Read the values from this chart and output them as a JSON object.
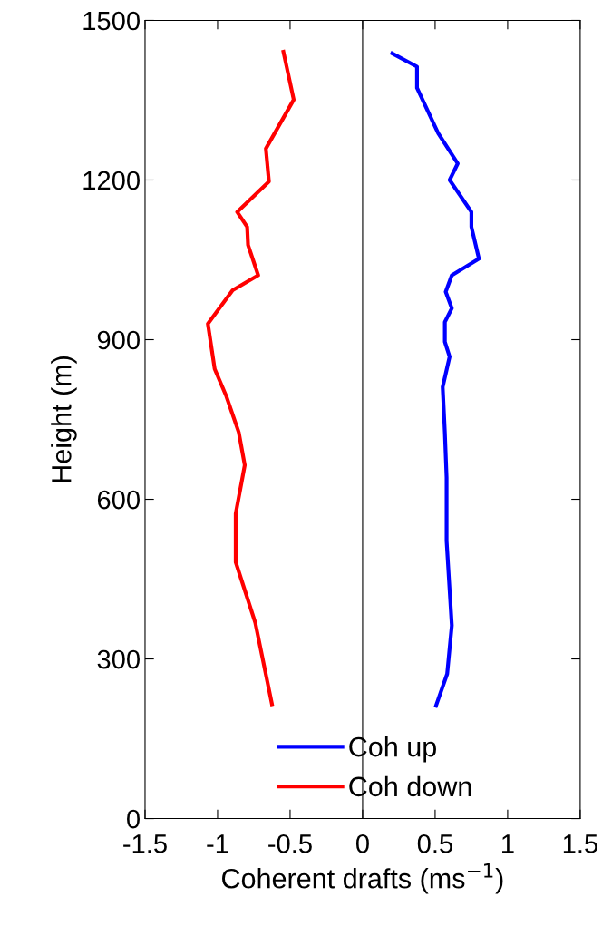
{
  "chart_data": {
    "type": "line",
    "xlabel": "Coherent drafts (ms$^{−1}$)",
    "ylabel": "Height (m)",
    "xlim": [
      -1.5,
      1.5
    ],
    "xticks": [
      -1.5,
      -1,
      -0.5,
      0,
      0.5,
      1,
      1.5
    ],
    "ylim": [
      0,
      1500
    ],
    "yticks": [
      0,
      300,
      600,
      900,
      1200,
      1500
    ],
    "grid": false,
    "legend": "bottom",
    "marker": "none",
    "line_style": "solid",
    "ref_lines": [
      {
        "axis": "x",
        "value": 0,
        "color": "#000000"
      }
    ],
    "series": [
      {
        "name": "Coh up",
        "color": "#0000ff",
        "x": [
          0.204,
          0.375,
          0.375,
          0.521,
          0.656,
          0.6,
          0.75,
          0.75,
          0.802,
          0.615,
          0.573,
          0.615,
          0.567,
          0.567,
          0.6,
          0.552,
          0.567,
          0.579,
          0.579,
          0.615,
          0.583,
          0.506
        ],
        "values": [
          1438,
          1413,
          1373,
          1288,
          1231,
          1200,
          1140,
          1112,
          1052,
          1021,
          990,
          959,
          933,
          896,
          868,
          811,
          726,
          641,
          522,
          363,
          272,
          212
        ]
      },
      {
        "name": "Coh down",
        "color": "#ff0000",
        "x": [
          -0.546,
          -0.475,
          -0.667,
          -0.646,
          -0.865,
          -0.796,
          -0.79,
          -0.72,
          -0.896,
          -1.067,
          -1.02,
          -0.94,
          -0.854,
          -0.8125,
          -0.875,
          -0.875,
          -0.74,
          -0.625
        ],
        "values": [
          1441,
          1351,
          1259,
          1197,
          1140,
          1112,
          1078,
          1021,
          993,
          930,
          845,
          794,
          726,
          664,
          573,
          482,
          368,
          215
        ]
      }
    ]
  }
}
